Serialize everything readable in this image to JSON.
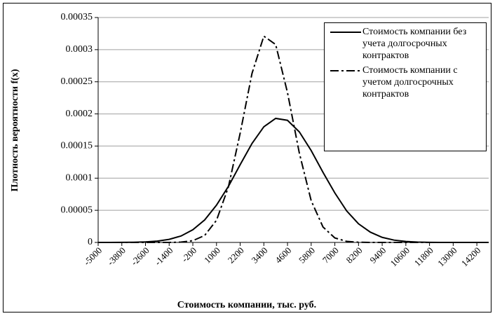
{
  "chart_data": {
    "type": "line",
    "xlabel": "Стоимость компании, тыс. руб.",
    "ylabel": "Плотность вероятности f(x)",
    "x": [
      -5000,
      -4400,
      -3800,
      -3200,
      -2600,
      -2000,
      -1400,
      -800,
      -200,
      400,
      1000,
      1600,
      2200,
      2800,
      3400,
      4000,
      4600,
      5200,
      5800,
      6400,
      7000,
      7600,
      8200,
      8800,
      9400,
      10000,
      10600,
      11200,
      11800,
      12400,
      13000,
      13600,
      14200,
      14800
    ],
    "series": [
      {
        "name": "Стоимость компании без учета долгосрочных контрактов",
        "color": "#000000",
        "dash": "solid",
        "values": [
          0,
          0,
          1e-07,
          3e-07,
          8e-07,
          2.1e-06,
          4.8e-06,
          1e-05,
          1.97e-05,
          3.5e-05,
          5.8e-05,
          8.7e-05,
          0.000121,
          0.000154,
          0.00018,
          0.000193,
          0.00019,
          0.000172,
          0.000143,
          0.000109,
          7.7e-05,
          4.9e-05,
          2.9e-05,
          1.6e-05,
          7.9e-06,
          3.6e-06,
          1.5e-06,
          6e-07,
          2e-07,
          0,
          0,
          0,
          0,
          0
        ]
      },
      {
        "name": "Стоимость компании с учетом долгосрочных контрактов",
        "color": "#000000",
        "dash": "dashdot",
        "values": [
          0,
          0,
          0,
          0,
          0,
          0,
          0,
          5e-07,
          2.7e-06,
          1.09e-05,
          3.45e-05,
          8.6e-05,
          0.00017,
          0.000263,
          0.000321,
          0.000308,
          0.000233,
          0.000139,
          6.5e-05,
          2.4e-05,
          7e-06,
          1.6e-06,
          3e-07,
          0,
          0,
          0,
          0,
          0,
          0,
          0,
          0,
          0,
          0,
          0
        ]
      }
    ],
    "xlim": [
      -5000,
      14800
    ],
    "xticks": [
      -5000,
      -3800,
      -2600,
      -1400,
      -200,
      1000,
      2200,
      3400,
      4600,
      5800,
      7000,
      8200,
      9400,
      10600,
      11800,
      13000,
      14200
    ],
    "ylim": [
      0,
      0.00035
    ],
    "yticks": [
      0,
      5e-05,
      0.0001,
      0.00015,
      0.0002,
      0.00025,
      0.0003,
      0.00035
    ],
    "grid": true,
    "legend": "top-right"
  }
}
